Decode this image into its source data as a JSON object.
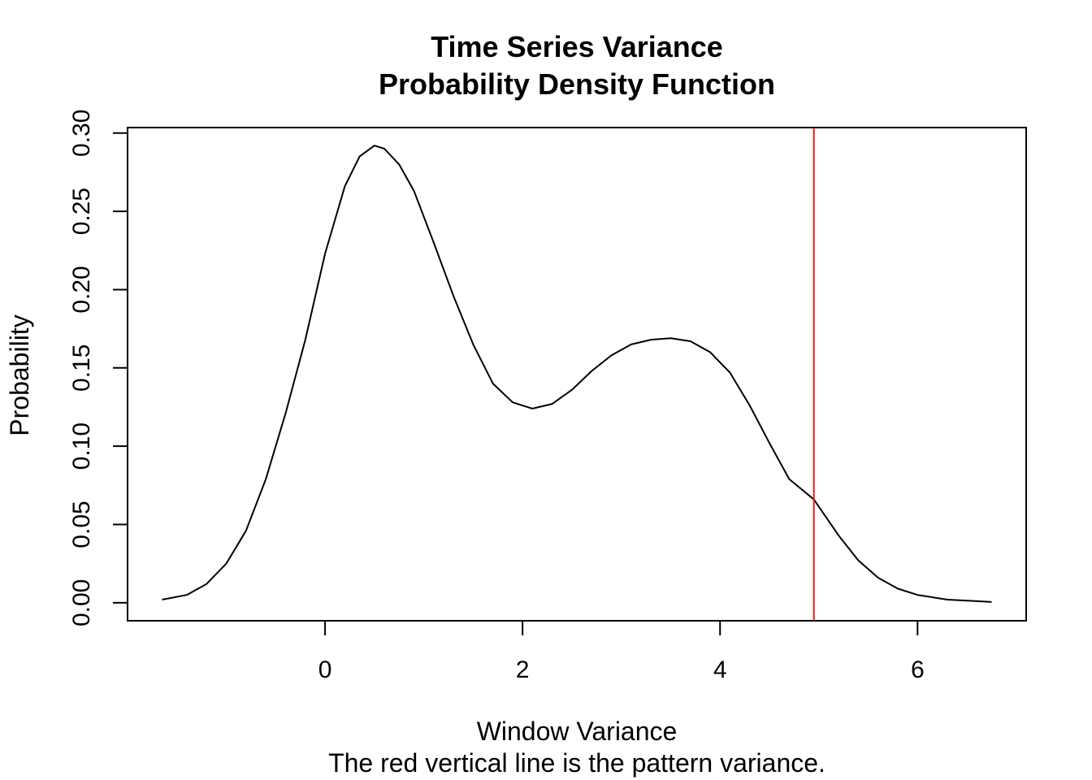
{
  "chart_data": {
    "type": "line",
    "title": "Time Series Variance",
    "subtitle": "Probability Density Function",
    "xlabel": "Window Variance",
    "caption": "The red vertical line is the pattern variance.",
    "ylabel": "Probability",
    "xlim": [
      -2,
      7.1
    ],
    "ylim": [
      -0.0115,
      0.3035
    ],
    "x_ticks": [
      0,
      2,
      4,
      6
    ],
    "y_ticks": [
      0.0,
      0.05,
      0.1,
      0.15,
      0.2,
      0.25,
      0.3
    ],
    "y_tick_labels": [
      "0.00",
      "0.05",
      "0.10",
      "0.15",
      "0.20",
      "0.25",
      "0.30"
    ],
    "grid": false,
    "series": [
      {
        "color": "#000000",
        "x": [
          -1.65,
          -1.4,
          -1.2,
          -1.0,
          -0.8,
          -0.6,
          -0.4,
          -0.2,
          0.0,
          0.2,
          0.35,
          0.5,
          0.6,
          0.75,
          0.9,
          1.1,
          1.3,
          1.5,
          1.7,
          1.9,
          2.1,
          2.3,
          2.5,
          2.7,
          2.9,
          3.1,
          3.3,
          3.5,
          3.7,
          3.9,
          4.1,
          4.3,
          4.5,
          4.7,
          4.95,
          5.2,
          5.4,
          5.6,
          5.8,
          6.0,
          6.3,
          6.6,
          6.75
        ],
        "y": [
          0.002,
          0.005,
          0.012,
          0.025,
          0.046,
          0.079,
          0.121,
          0.168,
          0.223,
          0.266,
          0.285,
          0.292,
          0.29,
          0.28,
          0.263,
          0.23,
          0.196,
          0.165,
          0.14,
          0.128,
          0.124,
          0.127,
          0.136,
          0.148,
          0.158,
          0.165,
          0.168,
          0.169,
          0.167,
          0.16,
          0.147,
          0.126,
          0.102,
          0.079,
          0.066,
          0.043,
          0.027,
          0.016,
          0.009,
          0.005,
          0.002,
          0.001,
          0.0005
        ]
      }
    ],
    "vline": {
      "x": 4.95,
      "color": "#e41a1c"
    }
  }
}
